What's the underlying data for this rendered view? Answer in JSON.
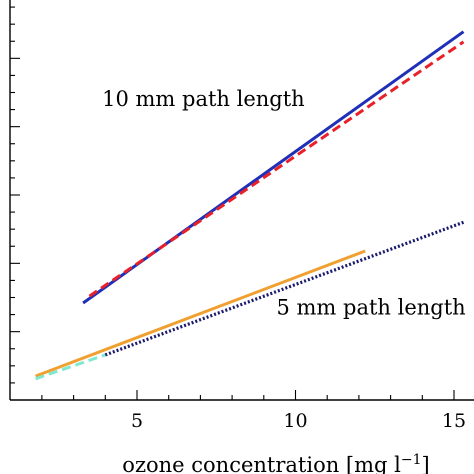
{
  "chart_data": {
    "type": "line",
    "xlabel": "ozone concentration [mg l−1]",
    "xlabel_base": "ozone concentration [mg l",
    "xlabel_sup": "−1",
    "xlabel_close": "]",
    "ylabel": "",
    "title": "",
    "xlim": [
      0,
      15.3
    ],
    "ylim": [
      0,
      1.2
    ],
    "x_ticks": [
      5,
      10,
      15
    ],
    "x_tick_labels": [
      "5",
      "10",
      "15"
    ],
    "grid": false,
    "annotations": [
      {
        "id": "ann-10mm",
        "text": "10 mm path length",
        "x": 3.9,
        "y": 0.86
      },
      {
        "id": "ann-5mm",
        "text": "5 mm path length",
        "x": 9.4,
        "y": 0.25
      }
    ],
    "series": [
      {
        "id": "blue-10mm",
        "color": "#1f2fb8",
        "style": "solid",
        "x": [
          3.3,
          15.3
        ],
        "y": [
          0.284,
          1.078
        ]
      },
      {
        "id": "red-10mm",
        "color": "#e8202a",
        "style": "dashed",
        "x": [
          3.5,
          15.3
        ],
        "y": [
          0.304,
          1.048
        ]
      },
      {
        "id": "orange-5mm",
        "color": "#f0a030",
        "style": "solid",
        "x": [
          1.8,
          12.2
        ],
        "y": [
          0.07,
          0.436
        ]
      },
      {
        "id": "cyan-5mm",
        "color": "#7ee8d0",
        "style": "dashed",
        "x": [
          1.8,
          4.0
        ],
        "y": [
          0.062,
          0.132
        ]
      },
      {
        "id": "navy-5mm",
        "color": "#1a1a6e",
        "style": "dotted",
        "x": [
          4.0,
          15.3
        ],
        "y": [
          0.132,
          0.52
        ]
      }
    ]
  }
}
